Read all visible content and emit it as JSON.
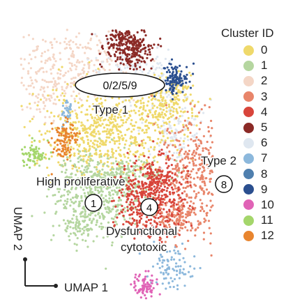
{
  "chart_data": {
    "type": "scatter",
    "xlabel": "UMAP 1",
    "ylabel": "UMAP 2",
    "legend": {
      "title": "Cluster ID",
      "placement": "right",
      "entries": [
        {
          "label": "0",
          "color": "#efd96b"
        },
        {
          "label": "1",
          "color": "#b5d6a0"
        },
        {
          "label": "2",
          "color": "#f4d6c6"
        },
        {
          "label": "3",
          "color": "#e8856a"
        },
        {
          "label": "4",
          "color": "#d8453b"
        },
        {
          "label": "5",
          "color": "#8b2a26"
        },
        {
          "label": "6",
          "color": "#dfe7f0"
        },
        {
          "label": "7",
          "color": "#8cb8dc"
        },
        {
          "label": "8",
          "color": "#4f7fae"
        },
        {
          "label": "9",
          "color": "#2b4f8f"
        },
        {
          "label": "10",
          "color": "#e063b6"
        },
        {
          "label": "11",
          "color": "#a4d66b"
        },
        {
          "label": "12",
          "color": "#e8852f"
        }
      ]
    },
    "annotations": {
      "boxed_cluster_label": "0/2/5/9",
      "circled_labels": [
        "1",
        "4",
        "8"
      ],
      "text_labels": [
        "Type 1",
        "Type 2",
        "High proliferative",
        "Dysfunctional",
        "cytotoxic"
      ]
    },
    "grid": false,
    "axes_ticks": false
  }
}
